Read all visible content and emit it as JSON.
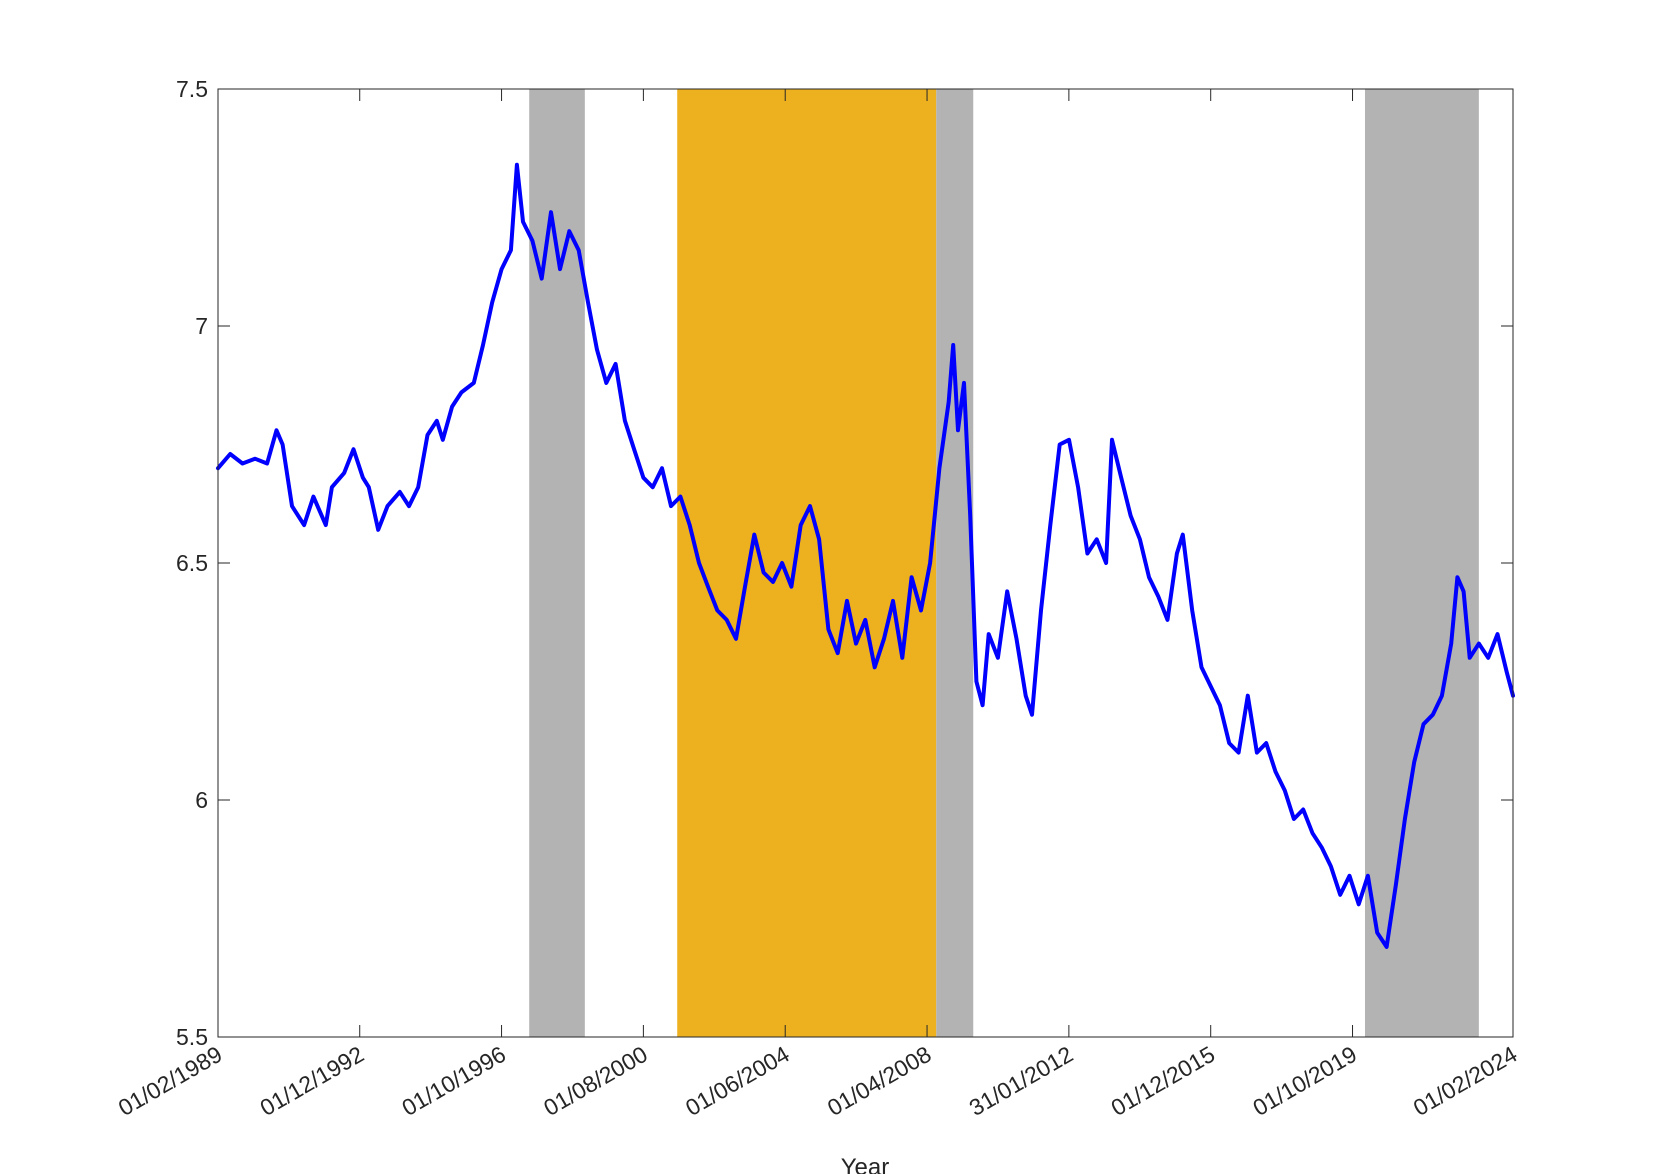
{
  "chart_data": {
    "type": "line",
    "title": "",
    "xlabel": "Year",
    "ylabel": "",
    "xlim": [
      "1989-02-01",
      "2024-02-01"
    ],
    "ylim": [
      5.5,
      7.5
    ],
    "grid": false,
    "x_tick_labels": [
      {
        "date": "1989-02-01",
        "label": "01/02/1989"
      },
      {
        "date": "1992-12-01",
        "label": "01/12/1992"
      },
      {
        "date": "1996-10-01",
        "label": "01/10/1996"
      },
      {
        "date": "2000-08-01",
        "label": "01/08/2000"
      },
      {
        "date": "2004-06-01",
        "label": "01/06/2004"
      },
      {
        "date": "2008-04-01",
        "label": "01/04/2008"
      },
      {
        "date": "2012-01-31",
        "label": "31/01/2012"
      },
      {
        "date": "2015-12-01",
        "label": "01/12/2015"
      },
      {
        "date": "2019-10-01",
        "label": "01/10/2019"
      },
      {
        "date": "2024-02-01",
        "label": "01/02/2024"
      }
    ],
    "y_ticks": [
      5.5,
      6,
      6.5,
      7,
      7.5
    ],
    "y_tick_labels": [
      "5.5",
      "6",
      "6.5",
      "7",
      "7.5"
    ],
    "shaded_regions": [
      {
        "start": "1997-07-01",
        "end": "1999-01-01",
        "color": "#b3b3b3"
      },
      {
        "start": "2001-07-01",
        "end": "2008-07-01",
        "color": "#edb120"
      },
      {
        "start": "2008-07-01",
        "end": "2009-07-01",
        "color": "#b3b3b3"
      },
      {
        "start": "2020-02-01",
        "end": "2023-03-01",
        "color": "#b3b3b3"
      }
    ],
    "series": [
      {
        "color": "#0000ff",
        "points": [
          [
            "1989-02-01",
            6.7
          ],
          [
            "1989-06-01",
            6.73
          ],
          [
            "1989-10-01",
            6.71
          ],
          [
            "1990-02-01",
            6.72
          ],
          [
            "1990-06-01",
            6.71
          ],
          [
            "1990-09-01",
            6.78
          ],
          [
            "1990-11-01",
            6.75
          ],
          [
            "1991-02-01",
            6.62
          ],
          [
            "1991-06-01",
            6.58
          ],
          [
            "1991-09-01",
            6.64
          ],
          [
            "1992-01-01",
            6.58
          ],
          [
            "1992-03-01",
            6.66
          ],
          [
            "1992-07-01",
            6.69
          ],
          [
            "1992-10-01",
            6.74
          ],
          [
            "1993-01-01",
            6.68
          ],
          [
            "1993-03-01",
            6.66
          ],
          [
            "1993-06-01",
            6.57
          ],
          [
            "1993-09-01",
            6.62
          ],
          [
            "1994-01-01",
            6.65
          ],
          [
            "1994-04-01",
            6.62
          ],
          [
            "1994-07-01",
            6.66
          ],
          [
            "1994-10-01",
            6.77
          ],
          [
            "1995-01-01",
            6.8
          ],
          [
            "1995-03-01",
            6.76
          ],
          [
            "1995-06-01",
            6.83
          ],
          [
            "1995-09-01",
            6.86
          ],
          [
            "1996-01-01",
            6.88
          ],
          [
            "1996-04-01",
            6.96
          ],
          [
            "1996-07-01",
            7.05
          ],
          [
            "1996-10-01",
            7.12
          ],
          [
            "1997-01-01",
            7.16
          ],
          [
            "1997-03-01",
            7.34
          ],
          [
            "1997-05-01",
            7.22
          ],
          [
            "1997-08-01",
            7.18
          ],
          [
            "1997-11-01",
            7.1
          ],
          [
            "1998-02-01",
            7.24
          ],
          [
            "1998-05-01",
            7.12
          ],
          [
            "1998-08-01",
            7.2
          ],
          [
            "1998-11-01",
            7.16
          ],
          [
            "1999-02-01",
            7.05
          ],
          [
            "1999-05-01",
            6.95
          ],
          [
            "1999-08-01",
            6.88
          ],
          [
            "1999-11-01",
            6.92
          ],
          [
            "2000-02-01",
            6.8
          ],
          [
            "2000-05-01",
            6.74
          ],
          [
            "2000-08-01",
            6.68
          ],
          [
            "2000-11-01",
            6.66
          ],
          [
            "2001-02-01",
            6.7
          ],
          [
            "2001-05-01",
            6.62
          ],
          [
            "2001-08-01",
            6.64
          ],
          [
            "2001-11-01",
            6.58
          ],
          [
            "2002-02-01",
            6.5
          ],
          [
            "2002-05-01",
            6.45
          ],
          [
            "2002-08-01",
            6.4
          ],
          [
            "2002-11-01",
            6.38
          ],
          [
            "2003-02-01",
            6.34
          ],
          [
            "2003-05-01",
            6.45
          ],
          [
            "2003-08-01",
            6.56
          ],
          [
            "2003-11-01",
            6.48
          ],
          [
            "2004-02-01",
            6.46
          ],
          [
            "2004-05-01",
            6.5
          ],
          [
            "2004-08-01",
            6.45
          ],
          [
            "2004-11-01",
            6.58
          ],
          [
            "2005-02-01",
            6.62
          ],
          [
            "2005-05-01",
            6.55
          ],
          [
            "2005-08-01",
            6.36
          ],
          [
            "2005-11-01",
            6.31
          ],
          [
            "2006-02-01",
            6.42
          ],
          [
            "2006-05-01",
            6.33
          ],
          [
            "2006-08-01",
            6.38
          ],
          [
            "2006-11-01",
            6.28
          ],
          [
            "2007-02-01",
            6.34
          ],
          [
            "2007-05-01",
            6.42
          ],
          [
            "2007-08-01",
            6.3
          ],
          [
            "2007-11-01",
            6.47
          ],
          [
            "2008-02-01",
            6.4
          ],
          [
            "2008-05-01",
            6.5
          ],
          [
            "2008-08-01",
            6.7
          ],
          [
            "2008-11-01",
            6.84
          ],
          [
            "2008-12-15",
            6.96
          ],
          [
            "2009-02-01",
            6.78
          ],
          [
            "2009-04-01",
            6.88
          ],
          [
            "2009-06-01",
            6.6
          ],
          [
            "2009-08-01",
            6.25
          ],
          [
            "2009-10-01",
            6.2
          ],
          [
            "2009-12-01",
            6.35
          ],
          [
            "2010-03-01",
            6.3
          ],
          [
            "2010-06-01",
            6.44
          ],
          [
            "2010-09-01",
            6.34
          ],
          [
            "2010-12-01",
            6.22
          ],
          [
            "2011-02-01",
            6.18
          ],
          [
            "2011-05-01",
            6.4
          ],
          [
            "2011-08-01",
            6.58
          ],
          [
            "2011-11-01",
            6.75
          ],
          [
            "2012-02-01",
            6.76
          ],
          [
            "2012-05-01",
            6.66
          ],
          [
            "2012-08-01",
            6.52
          ],
          [
            "2012-11-01",
            6.55
          ],
          [
            "2013-02-01",
            6.5
          ],
          [
            "2013-04-01",
            6.76
          ],
          [
            "2013-07-01",
            6.68
          ],
          [
            "2013-10-01",
            6.6
          ],
          [
            "2014-01-01",
            6.55
          ],
          [
            "2014-04-01",
            6.47
          ],
          [
            "2014-07-01",
            6.43
          ],
          [
            "2014-10-01",
            6.38
          ],
          [
            "2015-01-01",
            6.52
          ],
          [
            "2015-03-01",
            6.56
          ],
          [
            "2015-06-01",
            6.4
          ],
          [
            "2015-09-01",
            6.28
          ],
          [
            "2015-12-01",
            6.24
          ],
          [
            "2016-03-01",
            6.2
          ],
          [
            "2016-06-01",
            6.12
          ],
          [
            "2016-09-01",
            6.1
          ],
          [
            "2016-12-01",
            6.22
          ],
          [
            "2017-03-01",
            6.1
          ],
          [
            "2017-06-01",
            6.12
          ],
          [
            "2017-09-01",
            6.06
          ],
          [
            "2017-12-01",
            6.02
          ],
          [
            "2018-03-01",
            5.96
          ],
          [
            "2018-06-01",
            5.98
          ],
          [
            "2018-09-01",
            5.93
          ],
          [
            "2018-12-01",
            5.9
          ],
          [
            "2019-03-01",
            5.86
          ],
          [
            "2019-06-01",
            5.8
          ],
          [
            "2019-09-01",
            5.84
          ],
          [
            "2019-12-01",
            5.78
          ],
          [
            "2020-03-01",
            5.84
          ],
          [
            "2020-06-01",
            5.72
          ],
          [
            "2020-09-01",
            5.69
          ],
          [
            "2020-12-01",
            5.82
          ],
          [
            "2021-03-01",
            5.96
          ],
          [
            "2021-06-01",
            6.08
          ],
          [
            "2021-09-01",
            6.16
          ],
          [
            "2021-12-01",
            6.18
          ],
          [
            "2022-03-01",
            6.22
          ],
          [
            "2022-06-01",
            6.33
          ],
          [
            "2022-08-01",
            6.47
          ],
          [
            "2022-10-01",
            6.44
          ],
          [
            "2022-12-01",
            6.3
          ],
          [
            "2023-03-01",
            6.33
          ],
          [
            "2023-06-01",
            6.3
          ],
          [
            "2023-09-01",
            6.35
          ],
          [
            "2023-12-01",
            6.27
          ],
          [
            "2024-02-01",
            6.22
          ]
        ]
      }
    ]
  }
}
